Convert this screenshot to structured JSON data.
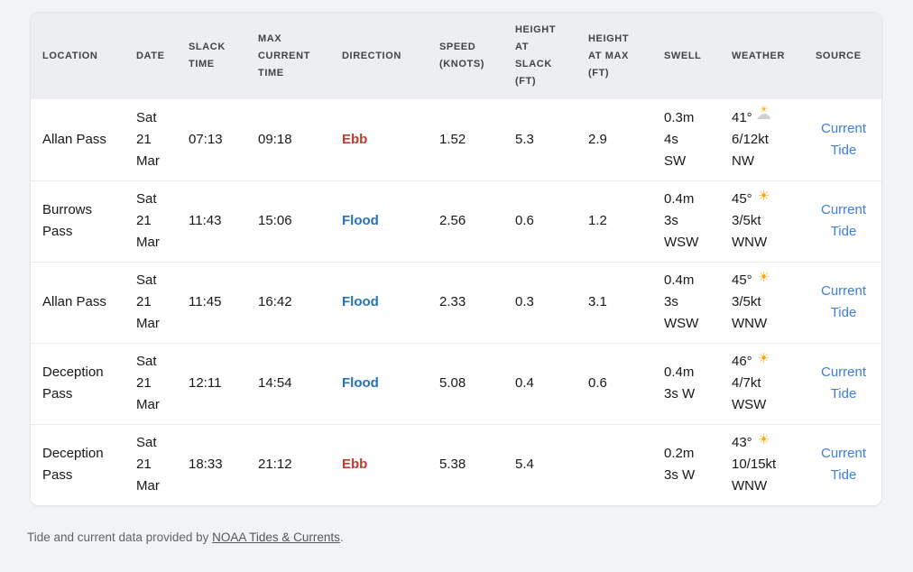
{
  "colors": {
    "page_background": "#f2f3f4",
    "header_background": "#eceef1",
    "ebb_red": "#c23b2e",
    "flood_blue": "#2273b8",
    "link_blue": "#3e7ede"
  },
  "table": {
    "columns": [
      {
        "id": "location",
        "label": "Location"
      },
      {
        "id": "date",
        "label": "Date"
      },
      {
        "id": "slack_time",
        "label": "Slack Time"
      },
      {
        "id": "max_current_time",
        "label": "Max Current Time"
      },
      {
        "id": "direction",
        "label": "Direction"
      },
      {
        "id": "speed_knots",
        "label": "Speed (Knots)"
      },
      {
        "id": "height_at_slack_ft",
        "label": "Height at Slack (FT)"
      },
      {
        "id": "height_at_max_ft",
        "label": "Height at Max (FT)"
      },
      {
        "id": "swell",
        "label": "Swell"
      },
      {
        "id": "weather",
        "label": "Weather"
      },
      {
        "id": "source",
        "label": "Source"
      }
    ],
    "rows": [
      {
        "location": "Allan Pass",
        "date_lines": [
          "Sat",
          "21",
          "Mar"
        ],
        "slack_time": "07:13",
        "max_current_time": "09:18",
        "direction": "Ebb",
        "direction_type": "ebb",
        "speed_knots": "1.52",
        "height_at_slack_ft": "5.3",
        "height_at_max_ft": "2.9",
        "swell_lines": [
          "0.3m",
          "4s",
          "SW"
        ],
        "weather": {
          "temp": "41°",
          "icon": "sun-behind-cloud",
          "wind": "6/12kt",
          "wind_dir": "NW"
        },
        "source_link": "Current Tide"
      },
      {
        "location": "Burrows Pass",
        "date_lines": [
          "Sat",
          "21",
          "Mar"
        ],
        "slack_time": "11:43",
        "max_current_time": "15:06",
        "direction": "Flood",
        "direction_type": "flood",
        "speed_knots": "2.56",
        "height_at_slack_ft": "0.6",
        "height_at_max_ft": "1.2",
        "swell_lines": [
          "0.4m",
          "3s",
          "WSW"
        ],
        "weather": {
          "temp": "45°",
          "icon": "sun",
          "wind": "3/5kt",
          "wind_dir": "WNW"
        },
        "source_link": "Current Tide"
      },
      {
        "location": "Allan Pass",
        "date_lines": [
          "Sat",
          "21",
          "Mar"
        ],
        "slack_time": "11:45",
        "max_current_time": "16:42",
        "direction": "Flood",
        "direction_type": "flood",
        "speed_knots": "2.33",
        "height_at_slack_ft": "0.3",
        "height_at_max_ft": "3.1",
        "swell_lines": [
          "0.4m",
          "3s",
          "WSW"
        ],
        "weather": {
          "temp": "45°",
          "icon": "sun",
          "wind": "3/5kt",
          "wind_dir": "WNW"
        },
        "source_link": "Current Tide"
      },
      {
        "location": "Deception Pass",
        "date_lines": [
          "Sat",
          "21",
          "Mar"
        ],
        "slack_time": "12:11",
        "max_current_time": "14:54",
        "direction": "Flood",
        "direction_type": "flood",
        "speed_knots": "5.08",
        "height_at_slack_ft": "0.4",
        "height_at_max_ft": "0.6",
        "swell_lines": [
          "0.4m",
          "3s W"
        ],
        "weather": {
          "temp": "46°",
          "icon": "sun",
          "wind": "4/7kt",
          "wind_dir": "WSW"
        },
        "source_link": "Current Tide"
      },
      {
        "location": "Deception Pass",
        "date_lines": [
          "Sat",
          "21",
          "Mar"
        ],
        "slack_time": "18:33",
        "max_current_time": "21:12",
        "direction": "Ebb",
        "direction_type": "ebb",
        "speed_knots": "5.38",
        "height_at_slack_ft": "5.4",
        "height_at_max_ft": "",
        "swell_lines": [
          "0.2m",
          "3s W"
        ],
        "weather": {
          "temp": "43°",
          "icon": "sun",
          "wind": "10/15kt",
          "wind_dir": "WNW"
        },
        "source_link": "Current Tide"
      }
    ]
  },
  "footer": {
    "text_prefix": "Tide and current data provided by ",
    "link_text": "NOAA Tides & Currents",
    "text_suffix": "."
  }
}
